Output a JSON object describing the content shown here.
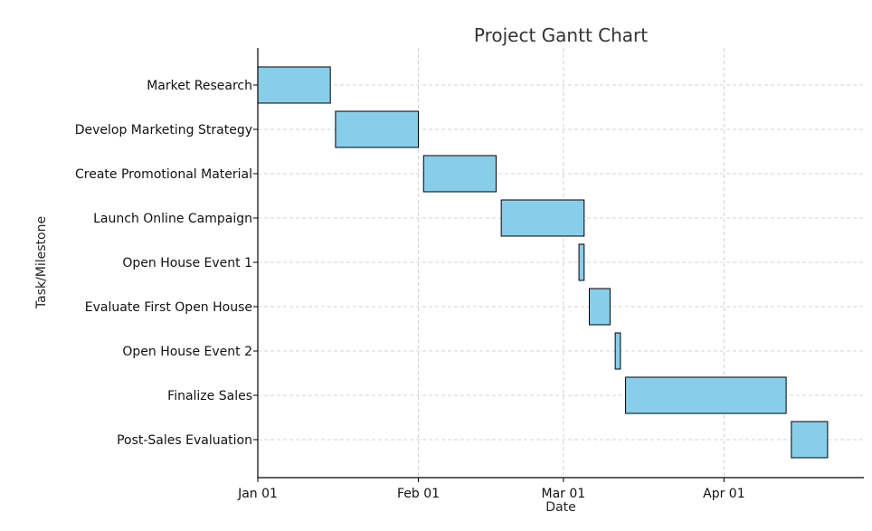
{
  "chart_data": {
    "type": "bar",
    "orientation": "horizontal-gantt",
    "title": "Project Gantt Chart",
    "xlabel": "Date",
    "ylabel": "Task/Milestone",
    "xlim": [
      "2023-01-01",
      "2023-04-28"
    ],
    "xticks": [
      {
        "date": "2023-01-01",
        "label": "Jan 01"
      },
      {
        "date": "2023-02-01",
        "label": "Feb 01"
      },
      {
        "date": "2023-03-01",
        "label": "Mar 01"
      },
      {
        "date": "2023-04-01",
        "label": "Apr 01"
      }
    ],
    "grid": true,
    "bar_color": "#87ceeb",
    "tasks": [
      {
        "name": "Market Research",
        "start": "2023-01-01",
        "end": "2023-01-15"
      },
      {
        "name": "Develop Marketing Strategy",
        "start": "2023-01-16",
        "end": "2023-02-01"
      },
      {
        "name": "Create Promotional Material",
        "start": "2023-02-02",
        "end": "2023-02-16"
      },
      {
        "name": "Launch Online Campaign",
        "start": "2023-02-17",
        "end": "2023-03-05"
      },
      {
        "name": "Open House Event 1",
        "start": "2023-03-04",
        "end": "2023-03-05"
      },
      {
        "name": "Evaluate First Open House",
        "start": "2023-03-06",
        "end": "2023-03-10"
      },
      {
        "name": "Open House Event 2",
        "start": "2023-03-11",
        "end": "2023-03-12"
      },
      {
        "name": "Finalize Sales",
        "start": "2023-03-13",
        "end": "2023-04-13"
      },
      {
        "name": "Post-Sales Evaluation",
        "start": "2023-04-14",
        "end": "2023-04-21"
      }
    ]
  }
}
